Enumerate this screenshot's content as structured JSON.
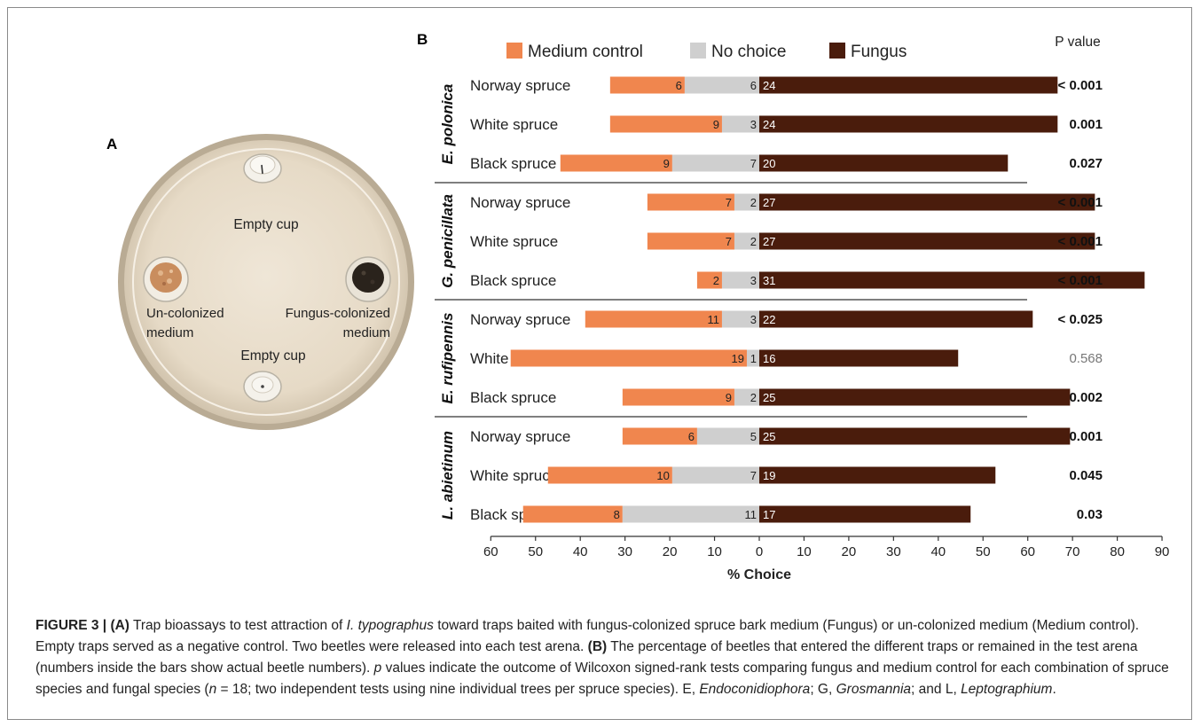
{
  "panel_a": {
    "letter": "A",
    "labels": {
      "empty_cup_top": "Empty cup",
      "empty_cup_bottom": "Empty cup",
      "left_line1": "Un-colonized",
      "left_line2": "medium",
      "right_line1": "Fungus-colonized",
      "right_line2": "medium"
    }
  },
  "chart_data": {
    "type": "bar",
    "panel_letter": "B",
    "legend": [
      {
        "name": "Medium control",
        "color": "#f0864e"
      },
      {
        "name": "No choice",
        "color": "#cfcfcf"
      },
      {
        "name": "Fungus",
        "color": "#4a1c0c"
      }
    ],
    "pvalue_header": "P value",
    "xlabel": "% Choice",
    "xticks": [
      "60",
      "50",
      "40",
      "30",
      "20",
      "10",
      "0",
      "10",
      "20",
      "30",
      "40",
      "50",
      "60",
      "70",
      "80",
      "90"
    ],
    "xlim": [
      -60,
      90
    ],
    "groups": [
      {
        "name": "E. polonica",
        "rows": [
          {
            "label": "Norway spruce",
            "medium": 6,
            "nochoice": 6,
            "fungus": 24,
            "p": "< 0.001",
            "bold": true
          },
          {
            "label": "White spruce",
            "medium": 9,
            "nochoice": 3,
            "fungus": 24,
            "p": "0.001",
            "bold": true
          },
          {
            "label": "Black spruce",
            "medium": 9,
            "nochoice": 7,
            "fungus": 20,
            "p": "0.027",
            "bold": true
          }
        ]
      },
      {
        "name": "G. penicillata",
        "rows": [
          {
            "label": "Norway spruce",
            "medium": 7,
            "nochoice": 2,
            "fungus": 27,
            "p": "< 0.001",
            "bold": true
          },
          {
            "label": "White spruce",
            "medium": 7,
            "nochoice": 2,
            "fungus": 27,
            "p": "< 0.001",
            "bold": true
          },
          {
            "label": "Black spruce",
            "medium": 2,
            "nochoice": 3,
            "fungus": 31,
            "p": "< 0.001",
            "bold": true
          }
        ]
      },
      {
        "name": "E. rufipennis",
        "rows": [
          {
            "label": "Norway spruce",
            "medium": 11,
            "nochoice": 3,
            "fungus": 22,
            "p": "< 0.025",
            "bold": true
          },
          {
            "label": "White spruce",
            "medium": 19,
            "nochoice": 1,
            "fungus": 16,
            "p": "0.568",
            "bold": false
          },
          {
            "label": "Black spruce",
            "medium": 9,
            "nochoice": 2,
            "fungus": 25,
            "p": "0.002",
            "bold": true
          }
        ]
      },
      {
        "name": "L. abietinum",
        "rows": [
          {
            "label": "Norway spruce",
            "medium": 6,
            "nochoice": 5,
            "fungus": 25,
            "p": "0.001",
            "bold": true
          },
          {
            "label": "White spruce",
            "medium": 10,
            "nochoice": 7,
            "fungus": 19,
            "p": "0.045",
            "bold": true
          },
          {
            "label": "Black spruce",
            "medium": 8,
            "nochoice": 11,
            "fungus": 17,
            "p": "0.03",
            "bold": true
          }
        ]
      }
    ]
  },
  "caption": {
    "fig": "FIGURE 3",
    "sep": " | ",
    "a_tag": "(A)",
    "t1": " Trap bioassays to test attraction of ",
    "species": "I. typographus",
    "t2": " toward traps baited with fungus-colonized spruce bark medium (Fungus) or un-colonized medium (Medium control). Empty traps served as a negative control. Two beetles were released into each test arena. ",
    "b_tag": "(B)",
    "t3": " The percentage of beetles that entered the different traps or remained in the test arena (numbers inside the bars show actual beetle numbers). ",
    "p_sym": "p",
    "t4": " values indicate the outcome of Wilcoxon signed-rank tests comparing fungus and medium control for each combination of spruce species and fungal species (",
    "n_sym": "n",
    "t5": " = 18; two independent tests using nine individual trees per spruce species). E, ",
    "g1": "Endoconidiophora",
    "t6": "; G, ",
    "g2": "Grosmannia",
    "t7": "; and L, ",
    "g3": "Leptographium",
    "t8": "."
  }
}
